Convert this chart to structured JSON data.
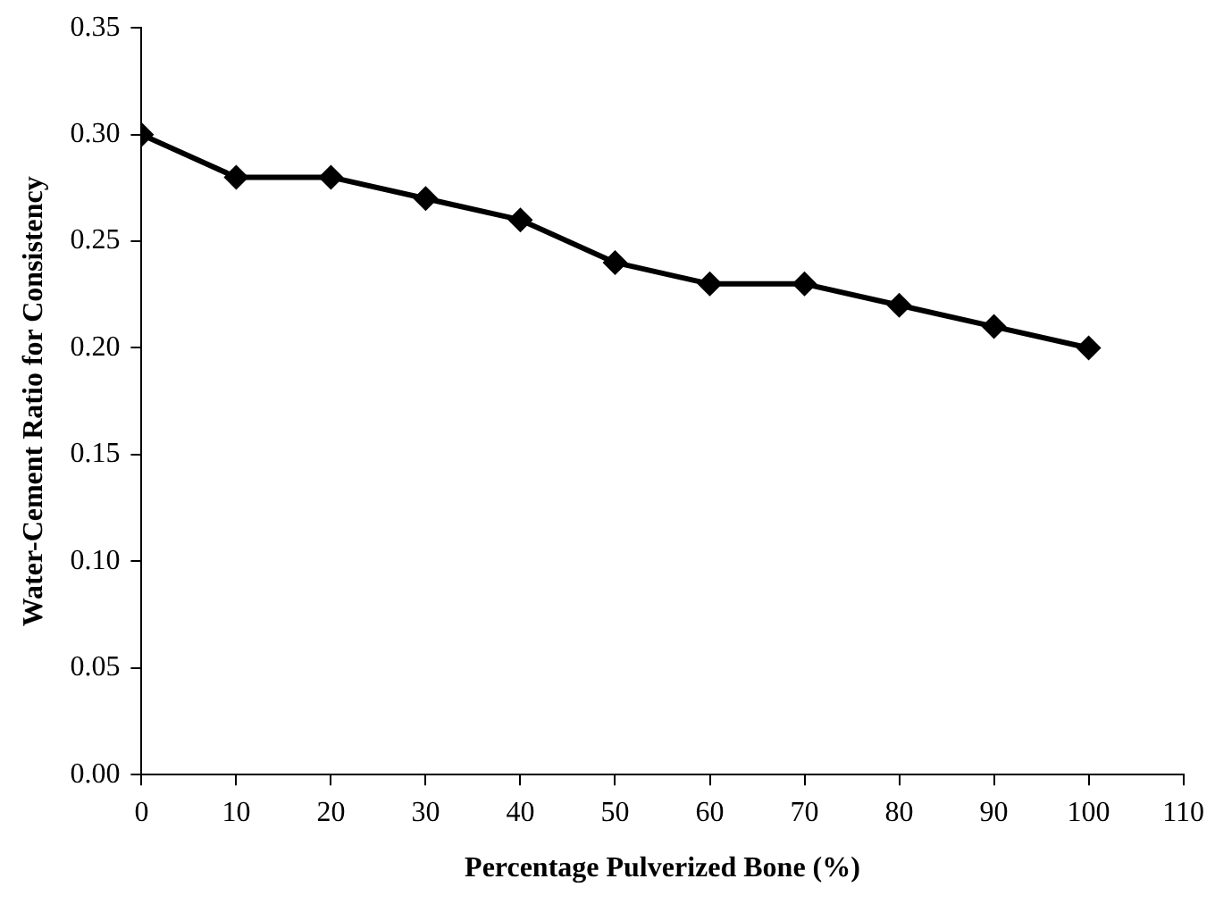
{
  "chart_data": {
    "type": "line",
    "xlabel": "Percentage Pulverized Bone (%)",
    "ylabel": "Water-Cement Ratio for Consistency",
    "x": [
      0,
      10,
      20,
      30,
      40,
      50,
      60,
      70,
      80,
      90,
      100
    ],
    "series": [
      {
        "color": "#000000",
        "values": [
          0.3,
          0.28,
          0.28,
          0.27,
          0.26,
          0.24,
          0.23,
          0.23,
          0.22,
          0.21,
          0.2
        ]
      }
    ],
    "xlim": [
      0,
      110
    ],
    "xticks": [
      0,
      10,
      20,
      30,
      40,
      50,
      60,
      70,
      80,
      90,
      100,
      110
    ],
    "ylim": [
      0,
      0.35
    ],
    "yticks": [
      {
        "value": 0,
        "label": "0.00"
      },
      {
        "value": 0.05,
        "label": "0.05"
      },
      {
        "value": 0.1,
        "label": "0.10"
      },
      {
        "value": 0.15,
        "label": "0.15"
      },
      {
        "value": 0.2,
        "label": "0.20"
      },
      {
        "value": 0.25,
        "label": "0.25"
      },
      {
        "value": 0.3,
        "label": "0.30"
      },
      {
        "value": 0.35,
        "label": "0.35"
      }
    ],
    "marker": "diamond",
    "line_style": "solid",
    "legend": false,
    "grid": false
  }
}
